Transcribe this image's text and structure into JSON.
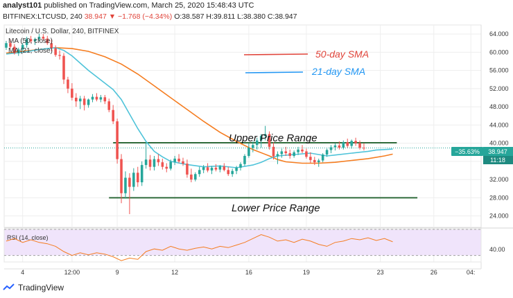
{
  "header": {
    "user": "analyst101",
    "published_text": "published on TradingView.com, March 25, 2020 15:48:43 UTC",
    "symbol": "BITFINEX:LTCUSD, 240",
    "last": "38.947",
    "change": "▼ −1.768 (−4.34%)",
    "ohlc": "O:38.587  H:39.811  L:38.380  C:38.947"
  },
  "legend": {
    "title": "Litecoin / U.S. Dollar, 240, BITFINEX",
    "ma50": "MA (50, close)",
    "ma21": "MA (21, close)"
  },
  "annotations": {
    "sma50": "50-day SMA",
    "sma21": "21-day SMA",
    "upper": "Upper Price  Range",
    "lower": "Lower Price Range"
  },
  "price_tags": {
    "pct": "−35.63%",
    "last": "38.947",
    "timer": "11:18"
  },
  "rsi": {
    "label": "RSI (14, close)",
    "level": "40.00"
  },
  "footer": {
    "brand": "TradingView"
  },
  "colors": {
    "up": "#26a69a",
    "down": "#ef5350",
    "ma50": "#f57c1f",
    "ma21": "#4ec3d9",
    "range": "#2f6b3a",
    "rsi_line": "#f57c1f",
    "rsi_bg": "#f0e4fb",
    "tag": "#26a69a"
  },
  "chart_data": {
    "type": "candlestick",
    "y_ticks": [
      24.0,
      28.0,
      32.0,
      36.0,
      40.0,
      44.0,
      48.0,
      52.0,
      56.0,
      60.0,
      64.0
    ],
    "ylim": [
      21.5,
      66.0
    ],
    "x_ticks": [
      "4",
      "12:00",
      "9",
      "12",
      "16",
      "19",
      "23",
      "26",
      "04:"
    ],
    "x_tick_pos": [
      4,
      16,
      27,
      41,
      59,
      73,
      91,
      104,
      113
    ],
    "x_len": 116,
    "candles": [
      [
        61.0,
        62.5,
        60.5,
        62.0
      ],
      [
        62.0,
        62.8,
        60.8,
        61.2
      ],
      [
        61.2,
        61.8,
        59.5,
        59.8
      ],
      [
        59.8,
        61.0,
        59.2,
        60.6
      ],
      [
        60.6,
        62.0,
        60.2,
        61.6
      ],
      [
        61.6,
        63.4,
        61.0,
        62.9
      ],
      [
        62.9,
        63.6,
        62.0,
        62.4
      ],
      [
        62.4,
        63.2,
        61.6,
        62.9
      ],
      [
        62.9,
        64.1,
        62.5,
        63.4
      ],
      [
        63.4,
        64.0,
        62.6,
        63.0
      ],
      [
        63.0,
        63.6,
        61.6,
        62.0
      ],
      [
        62.0,
        62.8,
        60.2,
        60.9
      ],
      [
        60.9,
        61.5,
        59.0,
        59.4
      ],
      [
        59.4,
        60.4,
        58.4,
        59.2
      ],
      [
        59.2,
        59.8,
        53.0,
        54.0
      ],
      [
        54.0,
        54.6,
        51.0,
        52.0
      ],
      [
        52.0,
        53.2,
        49.4,
        50.0
      ],
      [
        50.0,
        51.0,
        48.0,
        49.2
      ],
      [
        49.2,
        50.4,
        47.5,
        49.8
      ],
      [
        49.8,
        50.4,
        47.2,
        48.4
      ],
      [
        48.4,
        49.8,
        47.8,
        49.6
      ],
      [
        49.6,
        50.8,
        49.0,
        50.2
      ],
      [
        50.2,
        51.0,
        49.2,
        49.6
      ],
      [
        49.6,
        50.6,
        49.0,
        50.1
      ],
      [
        50.1,
        50.6,
        48.6,
        49.2
      ],
      [
        49.2,
        49.8,
        46.8,
        47.3
      ],
      [
        47.3,
        48.4,
        44.2,
        44.8
      ],
      [
        44.8,
        45.4,
        35.5,
        36.5
      ],
      [
        36.5,
        37.6,
        26.8,
        29.0
      ],
      [
        29.0,
        33.8,
        27.8,
        32.4
      ],
      [
        32.4,
        33.4,
        24.4,
        30.4
      ],
      [
        30.4,
        34.5,
        29.5,
        33.5
      ],
      [
        33.5,
        34.8,
        30.4,
        31.4
      ],
      [
        31.4,
        36.0,
        30.6,
        35.2
      ],
      [
        35.2,
        40.2,
        34.4,
        36.4
      ],
      [
        36.4,
        37.4,
        34.0,
        34.8
      ],
      [
        34.8,
        37.2,
        34.0,
        36.5
      ],
      [
        36.5,
        37.6,
        35.0,
        35.8
      ],
      [
        35.8,
        36.6,
        34.2,
        34.8
      ],
      [
        34.8,
        35.6,
        33.6,
        34.4
      ],
      [
        34.4,
        36.4,
        34.0,
        35.9
      ],
      [
        35.9,
        37.2,
        35.2,
        36.6
      ],
      [
        36.6,
        37.6,
        35.6,
        36.0
      ],
      [
        36.0,
        36.8,
        35.0,
        35.5
      ],
      [
        35.5,
        36.4,
        32.4,
        33.1
      ],
      [
        33.1,
        34.4,
        31.4,
        32.0
      ],
      [
        32.0,
        33.6,
        31.6,
        33.2
      ],
      [
        33.2,
        34.8,
        32.6,
        34.1
      ],
      [
        34.1,
        35.2,
        33.4,
        34.7
      ],
      [
        34.7,
        35.6,
        33.6,
        34.0
      ],
      [
        34.0,
        35.0,
        33.2,
        34.6
      ],
      [
        34.6,
        35.4,
        33.8,
        34.2
      ],
      [
        34.2,
        35.2,
        33.6,
        34.9
      ],
      [
        34.9,
        35.6,
        33.8,
        34.1
      ],
      [
        34.1,
        34.8,
        32.8,
        33.2
      ],
      [
        33.2,
        34.4,
        32.6,
        33.9
      ],
      [
        33.9,
        35.0,
        33.2,
        34.6
      ],
      [
        34.6,
        35.8,
        34.0,
        35.4
      ],
      [
        35.4,
        37.6,
        35.0,
        37.2
      ],
      [
        37.2,
        40.0,
        36.8,
        39.0
      ],
      [
        39.0,
        40.4,
        38.0,
        39.6
      ],
      [
        39.6,
        41.2,
        38.6,
        40.6
      ],
      [
        40.6,
        42.0,
        39.0,
        41.6
      ],
      [
        41.6,
        43.8,
        40.6,
        42.0
      ],
      [
        42.0,
        42.6,
        38.6,
        39.2
      ],
      [
        39.2,
        40.2,
        36.4,
        37.1
      ],
      [
        37.1,
        38.2,
        35.4,
        37.6
      ],
      [
        37.6,
        38.8,
        36.8,
        38.2
      ],
      [
        38.2,
        39.2,
        37.2,
        37.8
      ],
      [
        37.8,
        38.6,
        36.6,
        37.2
      ],
      [
        37.2,
        38.4,
        36.8,
        38.0
      ],
      [
        38.0,
        39.2,
        37.4,
        38.6
      ],
      [
        38.6,
        39.6,
        37.8,
        38.2
      ],
      [
        38.2,
        38.8,
        36.6,
        37.0
      ],
      [
        37.0,
        38.0,
        35.6,
        36.3
      ],
      [
        36.3,
        37.0,
        35.2,
        35.8
      ],
      [
        35.8,
        36.6,
        34.8,
        36.2
      ],
      [
        36.2,
        37.8,
        35.8,
        37.5
      ],
      [
        37.5,
        38.8,
        37.0,
        38.5
      ],
      [
        38.5,
        39.6,
        37.8,
        39.1
      ],
      [
        39.1,
        40.0,
        38.4,
        39.5
      ],
      [
        39.5,
        40.4,
        38.6,
        39.0
      ],
      [
        39.0,
        40.6,
        38.6,
        40.2
      ],
      [
        40.2,
        41.0,
        39.0,
        39.4
      ],
      [
        39.4,
        40.8,
        38.8,
        40.5
      ],
      [
        40.5,
        41.2,
        39.4,
        40.0
      ],
      [
        40.0,
        40.6,
        38.6,
        39.0
      ],
      [
        39.0,
        40.0,
        38.4,
        38.9
      ]
    ],
    "sma21": [
      [
        0,
        59.6
      ],
      [
        4,
        60.0
      ],
      [
        8,
        60.6
      ],
      [
        12,
        61.0
      ],
      [
        14,
        60.4
      ],
      [
        16,
        59.2
      ],
      [
        18,
        57.6
      ],
      [
        20,
        56.0
      ],
      [
        22,
        54.6
      ],
      [
        24,
        53.2
      ],
      [
        26,
        51.8
      ],
      [
        28,
        49.6
      ],
      [
        30,
        46.4
      ],
      [
        32,
        43.2
      ],
      [
        34,
        40.4
      ],
      [
        36,
        38.2
      ],
      [
        38,
        37.0
      ],
      [
        40,
        36.0
      ],
      [
        44,
        35.3
      ],
      [
        48,
        34.8
      ],
      [
        52,
        35.0
      ],
      [
        56,
        34.6
      ],
      [
        60,
        35.2
      ],
      [
        62,
        35.8
      ],
      [
        64,
        36.6
      ],
      [
        66,
        37.2
      ],
      [
        70,
        37.5
      ],
      [
        74,
        37.8
      ],
      [
        78,
        37.2
      ],
      [
        80,
        37.4
      ],
      [
        84,
        37.8
      ],
      [
        86,
        38.0
      ],
      [
        88,
        38.2
      ],
      [
        90,
        38.5
      ],
      [
        92,
        38.6
      ],
      [
        94,
        38.7
      ]
    ],
    "sma50": [
      [
        0,
        59.8
      ],
      [
        4,
        60.2
      ],
      [
        8,
        60.6
      ],
      [
        12,
        61.0
      ],
      [
        16,
        60.8
      ],
      [
        20,
        60.2
      ],
      [
        24,
        59.0
      ],
      [
        28,
        57.4
      ],
      [
        32,
        55.2
      ],
      [
        36,
        52.6
      ],
      [
        40,
        50.0
      ],
      [
        44,
        47.4
      ],
      [
        48,
        44.8
      ],
      [
        52,
        42.4
      ],
      [
        56,
        40.4
      ],
      [
        60,
        38.6
      ],
      [
        64,
        37.2
      ],
      [
        66,
        36.4
      ],
      [
        68,
        35.9
      ],
      [
        72,
        35.6
      ],
      [
        76,
        35.6
      ],
      [
        80,
        35.8
      ],
      [
        84,
        36.2
      ],
      [
        88,
        36.6
      ],
      [
        92,
        37.2
      ],
      [
        94,
        37.6
      ]
    ],
    "upper_range": {
      "from": 26,
      "to": 95,
      "y": 40.1
    },
    "lower_range": {
      "from": 25,
      "to": 100,
      "y": 28.0
    },
    "last_price": 38.947,
    "rsi": [
      [
        0,
        52
      ],
      [
        2,
        56
      ],
      [
        4,
        50
      ],
      [
        6,
        54
      ],
      [
        8,
        50
      ],
      [
        10,
        48
      ],
      [
        12,
        44
      ],
      [
        14,
        36
      ],
      [
        16,
        30
      ],
      [
        18,
        34
      ],
      [
        20,
        31
      ],
      [
        22,
        34
      ],
      [
        24,
        32
      ],
      [
        26,
        28
      ],
      [
        28,
        22
      ],
      [
        30,
        26
      ],
      [
        32,
        24
      ],
      [
        34,
        36
      ],
      [
        36,
        40
      ],
      [
        38,
        38
      ],
      [
        40,
        44
      ],
      [
        42,
        40
      ],
      [
        44,
        38
      ],
      [
        46,
        41
      ],
      [
        48,
        43
      ],
      [
        50,
        40
      ],
      [
        52,
        44
      ],
      [
        54,
        42
      ],
      [
        56,
        46
      ],
      [
        58,
        50
      ],
      [
        60,
        56
      ],
      [
        62,
        62
      ],
      [
        64,
        58
      ],
      [
        66,
        52
      ],
      [
        68,
        54
      ],
      [
        70,
        50
      ],
      [
        72,
        55
      ],
      [
        74,
        52
      ],
      [
        76,
        47
      ],
      [
        78,
        44
      ],
      [
        80,
        50
      ],
      [
        82,
        52
      ],
      [
        84,
        56
      ],
      [
        86,
        54
      ],
      [
        88,
        57
      ],
      [
        90,
        53
      ],
      [
        92,
        56
      ],
      [
        94,
        51
      ]
    ],
    "rsi_ylim": [
      20,
      70
    ],
    "rsi_band": [
      30,
      70
    ],
    "rsi_level": 40
  }
}
